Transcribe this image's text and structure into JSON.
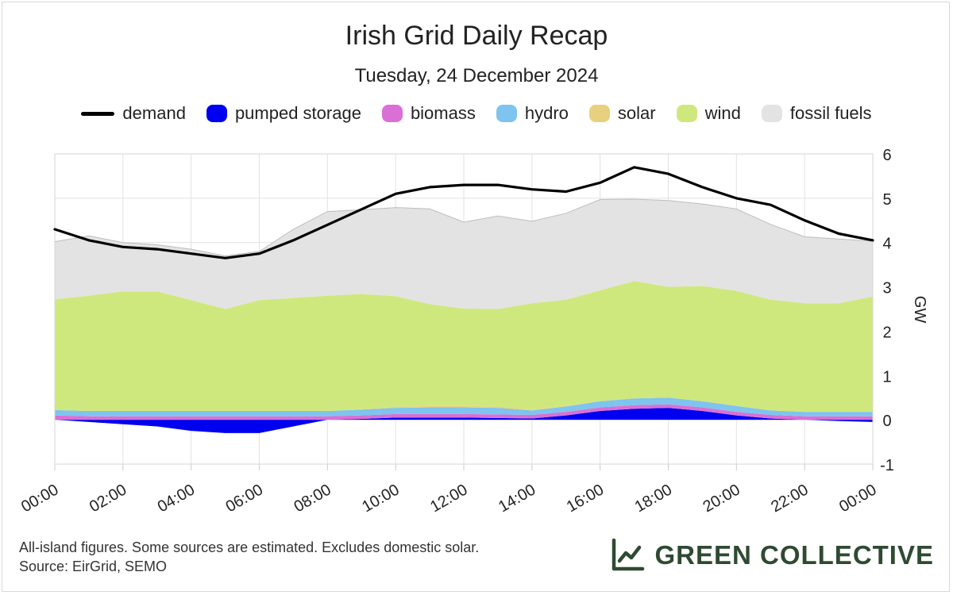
{
  "header": {
    "title": "Irish Grid Daily Recap",
    "subtitle": "Tuesday, 24 December 2024"
  },
  "legend": [
    {
      "label": "demand",
      "color": "#000000",
      "kind": "line"
    },
    {
      "label": "pumped storage",
      "color": "#0000f0",
      "kind": "area"
    },
    {
      "label": "biomass",
      "color": "#da70d6",
      "kind": "area"
    },
    {
      "label": "hydro",
      "color": "#7ec4ee",
      "kind": "area"
    },
    {
      "label": "solar",
      "color": "#e8d080",
      "kind": "area"
    },
    {
      "label": "wind",
      "color": "#cfe87e",
      "kind": "area"
    },
    {
      "label": "fossil fuels",
      "color": "#e3e3e3",
      "kind": "area"
    }
  ],
  "footer": {
    "note_line1": "All-island figures. Some sources are estimated. Excludes domestic solar.",
    "note_line2": "Source: EirGrid, SEMO",
    "brand": "GREEN COLLECTIVE",
    "brand_icon": "line-chart-icon",
    "brand_color": "#2f4a32"
  },
  "chart_data": {
    "type": "area",
    "stacked": true,
    "title": "Irish Grid Daily Recap",
    "subtitle": "Tuesday, 24 December 2024",
    "x": [
      0,
      1,
      2,
      3,
      4,
      5,
      6,
      7,
      8,
      9,
      10,
      11,
      12,
      13,
      14,
      15,
      16,
      17,
      18,
      19,
      20,
      21,
      22,
      23,
      24
    ],
    "x_tick_labels": [
      "00:00",
      "02:00",
      "04:00",
      "06:00",
      "08:00",
      "10:00",
      "12:00",
      "14:00",
      "16:00",
      "18:00",
      "20:00",
      "22:00",
      "00:00"
    ],
    "x_tick_hours": [
      0,
      2,
      4,
      6,
      8,
      10,
      12,
      14,
      16,
      18,
      20,
      22,
      24
    ],
    "ylabel": "GW",
    "ylim": [
      -1,
      6
    ],
    "y_ticks": [
      -1,
      0,
      1,
      2,
      3,
      4,
      5,
      6
    ],
    "grid": true,
    "y_axis_side": "right",
    "series": [
      {
        "name": "pumped storage",
        "color": "#0000f0",
        "values": [
          0,
          -0.05,
          -0.1,
          -0.15,
          -0.25,
          -0.3,
          -0.3,
          -0.15,
          0,
          0.02,
          0.05,
          0.05,
          0.05,
          0.04,
          0.03,
          0.1,
          0.2,
          0.25,
          0.27,
          0.2,
          0.1,
          0.03,
          0,
          -0.03,
          -0.05
        ]
      },
      {
        "name": "biomass",
        "color": "#da70d6",
        "values": [
          0.1,
          0.08,
          0.08,
          0.08,
          0.08,
          0.08,
          0.08,
          0.08,
          0.08,
          0.08,
          0.08,
          0.08,
          0.08,
          0.08,
          0.08,
          0.08,
          0.08,
          0.08,
          0.08,
          0.08,
          0.08,
          0.08,
          0.08,
          0.08,
          0.08
        ]
      },
      {
        "name": "hydro",
        "color": "#7ec4ee",
        "values": [
          0.12,
          0.12,
          0.12,
          0.12,
          0.12,
          0.12,
          0.12,
          0.12,
          0.12,
          0.13,
          0.14,
          0.15,
          0.15,
          0.15,
          0.1,
          0.12,
          0.14,
          0.15,
          0.15,
          0.14,
          0.13,
          0.1,
          0.1,
          0.1,
          0.1
        ]
      },
      {
        "name": "solar",
        "color": "#e8d080",
        "values": [
          0,
          0,
          0,
          0,
          0,
          0,
          0,
          0,
          0,
          0.01,
          0.02,
          0.03,
          0.03,
          0.03,
          0.02,
          0.01,
          0,
          0,
          0,
          0,
          0,
          0,
          0,
          0,
          0
        ]
      },
      {
        "name": "wind",
        "color": "#cfe87e",
        "values": [
          2.5,
          2.6,
          2.7,
          2.7,
          2.5,
          2.3,
          2.5,
          2.55,
          2.6,
          2.6,
          2.5,
          2.3,
          2.2,
          2.2,
          2.4,
          2.4,
          2.5,
          2.65,
          2.5,
          2.6,
          2.6,
          2.5,
          2.45,
          2.45,
          2.6
        ]
      },
      {
        "name": "fossil fuels",
        "color": "#e3e3e3",
        "values": [
          1.3,
          1.35,
          1.1,
          1.05,
          1.15,
          1.2,
          1.1,
          1.55,
          1.9,
          1.9,
          2.0,
          2.15,
          1.95,
          2.1,
          1.85,
          1.95,
          2.05,
          1.85,
          1.95,
          1.85,
          1.85,
          1.7,
          1.5,
          1.45,
          1.25
        ]
      }
    ],
    "demand": {
      "name": "demand",
      "color": "#000000",
      "values": [
        4.3,
        4.05,
        3.9,
        3.85,
        3.75,
        3.65,
        3.75,
        4.05,
        4.4,
        4.75,
        5.1,
        5.25,
        5.3,
        5.3,
        5.2,
        5.15,
        5.35,
        5.7,
        5.55,
        5.25,
        5.0,
        4.85,
        4.5,
        4.2,
        4.05
      ]
    }
  }
}
